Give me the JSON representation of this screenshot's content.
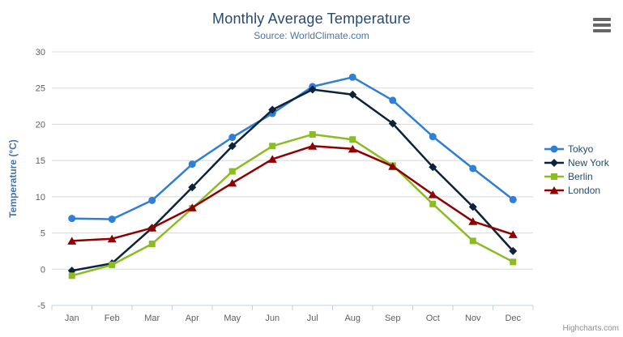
{
  "chart": {
    "title": "Monthly Average Temperature",
    "subtitle": "Source: WorldClimate.com",
    "credits": "Highcharts.com",
    "menu_icon": "hamburger-icon"
  },
  "chart_data": {
    "type": "line",
    "title": "Monthly Average Temperature",
    "subtitle": "Source: WorldClimate.com",
    "categories": [
      "Jan",
      "Feb",
      "Mar",
      "Apr",
      "May",
      "Jun",
      "Jul",
      "Aug",
      "Sep",
      "Oct",
      "Nov",
      "Dec"
    ],
    "xlabel": "",
    "ylabel": "Temperature (°C)",
    "ylim": [
      -5,
      30
    ],
    "ytick_interval": 5,
    "yticks": [
      -5,
      0,
      5,
      10,
      15,
      20,
      25,
      30
    ],
    "grid": true,
    "legend_position": "right",
    "series": [
      {
        "name": "Tokyo",
        "color": "#2f7ed8",
        "marker": "circle",
        "values": [
          7.0,
          6.9,
          9.5,
          14.5,
          18.2,
          21.5,
          25.2,
          26.5,
          23.3,
          18.3,
          13.9,
          9.6
        ]
      },
      {
        "name": "New York",
        "color": "#0d233a",
        "marker": "diamond",
        "values": [
          -0.2,
          0.8,
          5.7,
          11.3,
          17.0,
          22.0,
          24.8,
          24.1,
          20.1,
          14.1,
          8.6,
          2.5
        ]
      },
      {
        "name": "Berlin",
        "color": "#8bbc21",
        "marker": "square",
        "values": [
          -0.9,
          0.6,
          3.5,
          8.4,
          13.5,
          17.0,
          18.6,
          17.9,
          14.3,
          9.0,
          3.9,
          1.0
        ]
      },
      {
        "name": "London",
        "color": "#910000",
        "marker": "triangle",
        "values": [
          3.9,
          4.2,
          5.7,
          8.5,
          11.9,
          15.2,
          17.0,
          16.6,
          14.2,
          10.3,
          6.6,
          4.8
        ]
      }
    ]
  },
  "colors": {
    "title": "#274b6d",
    "subtitle": "#4d759e",
    "axis_title": "#4572a7",
    "tick_label": "#606060",
    "grid_line": "#d8d8d8",
    "axis_line": "#c0d0e0",
    "legend_text": "#274b6d",
    "credits": "#909090",
    "menu_icon": "#666666"
  }
}
